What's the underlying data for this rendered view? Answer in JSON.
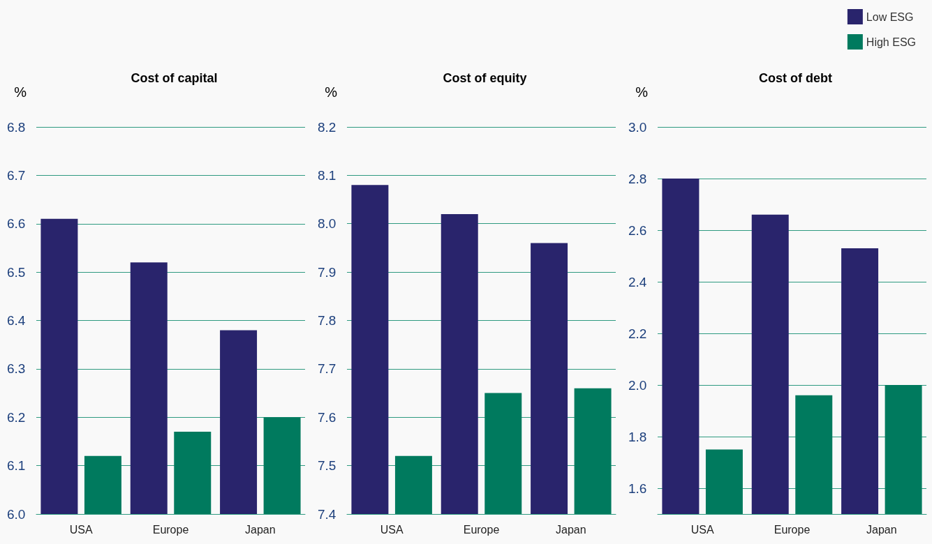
{
  "chart_data": [
    {
      "type": "bar",
      "title": "Cost of capital",
      "ylabel": "%",
      "categories": [
        "USA",
        "Europe",
        "Japan"
      ],
      "series": [
        {
          "color": "#29246c",
          "values": [
            6.61,
            6.52,
            6.38
          ]
        },
        {
          "color": "#007a5e",
          "values": [
            6.12,
            6.17,
            6.2
          ]
        }
      ],
      "ylim": [
        6.0,
        6.8
      ],
      "yticks": [
        {
          "value": 6.0,
          "label": "6.0"
        },
        6.1,
        6.2,
        6.3,
        6.4,
        6.5,
        6.6,
        6.7,
        6.8
      ],
      "grid": "y",
      "legend": false
    },
    {
      "type": "bar",
      "title": "Cost of equity",
      "ylabel": "%",
      "categories": [
        "USA",
        "Europe",
        "Japan"
      ],
      "series": [
        {
          "color": "#29246c",
          "values": [
            8.08,
            8.02,
            7.96
          ]
        },
        {
          "color": "#007a5e",
          "values": [
            7.52,
            7.65,
            7.66
          ]
        }
      ],
      "ylim": [
        7.4,
        8.2
      ],
      "yticks": [
        7.4,
        7.5,
        7.6,
        7.7,
        7.8,
        7.9,
        {
          "value": 8.0,
          "label": "8.0"
        },
        8.1,
        8.2
      ],
      "grid": "y",
      "legend": false
    },
    {
      "type": "bar",
      "title": "Cost of debt",
      "ylabel": "%",
      "categories": [
        "USA",
        "Europe",
        "Japan"
      ],
      "series": [
        {
          "name": "Low ESG",
          "color": "#29246c",
          "values": [
            2.8,
            2.66,
            2.53
          ]
        },
        {
          "name": "High ESG",
          "color": "#007a5e",
          "values": [
            1.75,
            1.96,
            2.0
          ]
        }
      ],
      "ylim": [
        1.5,
        3.0
      ],
      "yticks": [
        1.6,
        1.8,
        {
          "value": 2.0,
          "label": "2.0"
        },
        2.2,
        2.4,
        2.6,
        2.8,
        {
          "value": 3.0,
          "label": "3.0"
        }
      ],
      "grid": "y",
      "legend": "top right"
    }
  ]
}
